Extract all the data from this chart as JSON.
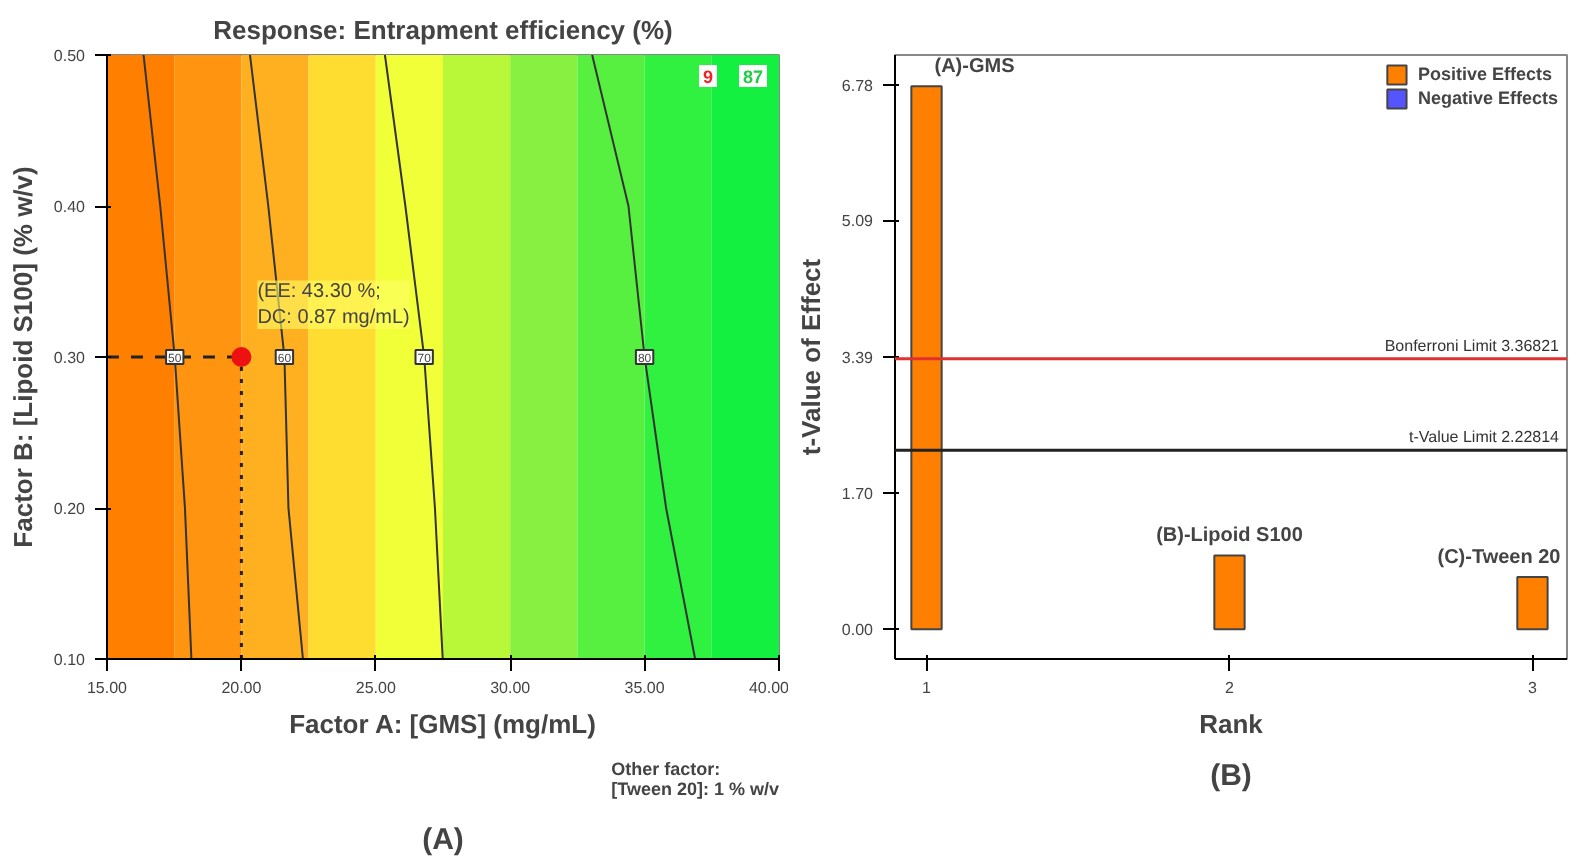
{
  "chart_data": [
    {
      "type": "line",
      "title": "Response: Entrapment efficiency (%)",
      "xlabel": "Factor A: [GMS] (mg/mL)",
      "ylabel": "Factor B: [Lipoid S100] (% w/v)",
      "xlim": [
        15,
        40
      ],
      "ylim": [
        0.1,
        0.5
      ],
      "xticks": [
        {
          "value": 15,
          "label": "15.00"
        },
        {
          "value": 20,
          "label": "20.00"
        },
        {
          "value": 25,
          "label": "25.00"
        },
        {
          "value": 30,
          "label": "30.00"
        },
        {
          "value": 35,
          "label": "35.00"
        },
        {
          "value": 40,
          "label": "40.00"
        }
      ],
      "yticks": [
        {
          "value": 0.1,
          "label": "0.10"
        },
        {
          "value": 0.2,
          "label": "0.20"
        },
        {
          "value": 0.3,
          "label": "0.30"
        },
        {
          "value": 0.4,
          "label": "0.40"
        },
        {
          "value": 0.5,
          "label": "0.50"
        }
      ],
      "bands": [
        {
          "axis": "x",
          "from": 15,
          "to": 17.5,
          "color": "#ff7f00"
        },
        {
          "axis": "x",
          "from": 17.5,
          "to": 20,
          "color": "#ff9410"
        },
        {
          "axis": "x",
          "from": 20,
          "to": 22.5,
          "color": "#ffb020"
        },
        {
          "axis": "x",
          "from": 22.5,
          "to": 25,
          "color": "#ffdc30"
        },
        {
          "axis": "x",
          "from": 25,
          "to": 27.5,
          "color": "#f0ff38"
        },
        {
          "axis": "x",
          "from": 27.5,
          "to": 30,
          "color": "#b8f838"
        },
        {
          "axis": "x",
          "from": 30,
          "to": 32.5,
          "color": "#88f040"
        },
        {
          "axis": "x",
          "from": 32.5,
          "to": 35,
          "color": "#58f040"
        },
        {
          "axis": "x",
          "from": 35,
          "to": 37.5,
          "color": "#30f040"
        },
        {
          "axis": "x",
          "from": 37.5,
          "to": 40,
          "color": "#14f040"
        }
      ],
      "series": [
        {
          "name": "50",
          "type": "line",
          "color": "#333333",
          "x": [
            16.36,
            16.98,
            17.52,
            17.9,
            18.14
          ],
          "values": [
            0.5,
            0.4,
            0.3,
            0.2,
            0.1
          ]
        },
        {
          "name": "60",
          "type": "line",
          "color": "#333333",
          "x": [
            20.32,
            21.0,
            21.6,
            21.75,
            22.29
          ],
          "values": [
            0.5,
            0.4,
            0.3,
            0.2,
            0.1
          ]
        },
        {
          "name": "70",
          "type": "line",
          "color": "#333333",
          "x": [
            25.34,
            26.1,
            26.8,
            27.2,
            27.49
          ],
          "values": [
            0.5,
            0.4,
            0.3,
            0.2,
            0.1
          ]
        },
        {
          "name": "80",
          "type": "line",
          "color": "#333333",
          "x": [
            33.05,
            34.4,
            35.0,
            35.8,
            36.88
          ],
          "values": [
            0.5,
            0.4,
            0.3,
            0.2,
            0.1
          ]
        },
        {
          "type": "line",
          "color": "#222222",
          "line_style": "dashed",
          "x": [
            15,
            20
          ],
          "values": [
            0.3,
            0.3
          ]
        },
        {
          "type": "line",
          "color": "#222222",
          "line_style": "dotted",
          "x": [
            20,
            20
          ],
          "values": [
            0.1,
            0.3
          ]
        },
        {
          "type": "scatter",
          "color": "#ee1111",
          "x": [
            20
          ],
          "values": [
            0.3
          ],
          "marker": "circle"
        }
      ],
      "annotations": [
        {
          "text": "(EE: 43.30 %;\nDC: 0.87 mg/mL)",
          "x": 20,
          "y": 0.3
        },
        "9",
        "87",
        "Other factor:\n[Tween 20]: 1 % w/v",
        "(A)"
      ],
      "grid": false
    },
    {
      "type": "bar",
      "xlabel": "Rank",
      "ylabel": "t-Value of Effect",
      "x": [
        1,
        2,
        3
      ],
      "xlim": [
        0.896,
        3.114
      ],
      "ylim": [
        -0.37,
        7.15
      ],
      "xticks": [
        1,
        2,
        3
      ],
      "yticks": [
        {
          "value": 0,
          "label": "0.00"
        },
        {
          "value": 1.7,
          "label": "1.70"
        },
        {
          "value": 3.39,
          "label": "3.39"
        },
        {
          "value": 5.09,
          "label": "5.09"
        },
        {
          "value": 6.78,
          "label": "6.78"
        }
      ],
      "series": [
        {
          "name": "Positive Effects",
          "color": "#ff8000",
          "values": [
            6.76,
            0.92,
            0.65
          ]
        },
        {
          "name": "Negative Effects",
          "color": "#5555ff",
          "values": [
            null,
            null,
            null
          ]
        }
      ],
      "ref_lines": [
        {
          "axis": "y",
          "value": 3.36821,
          "label": "Bonferroni Limit 3.36821",
          "color": "#e03030"
        },
        {
          "axis": "y",
          "value": 2.22814,
          "label": "t-Value Limit 2.22814",
          "color": "#222222"
        }
      ],
      "annotations": [
        {
          "text": "(A)-GMS",
          "x": 1,
          "y": 6.76
        },
        {
          "text": "(B)-Lipoid S100",
          "x": 2,
          "y": 0.92
        },
        {
          "text": "(C)-Tween 20",
          "x": 3,
          "y": 0.65
        },
        "(B)"
      ],
      "legend": "top right",
      "grid": false
    }
  ]
}
